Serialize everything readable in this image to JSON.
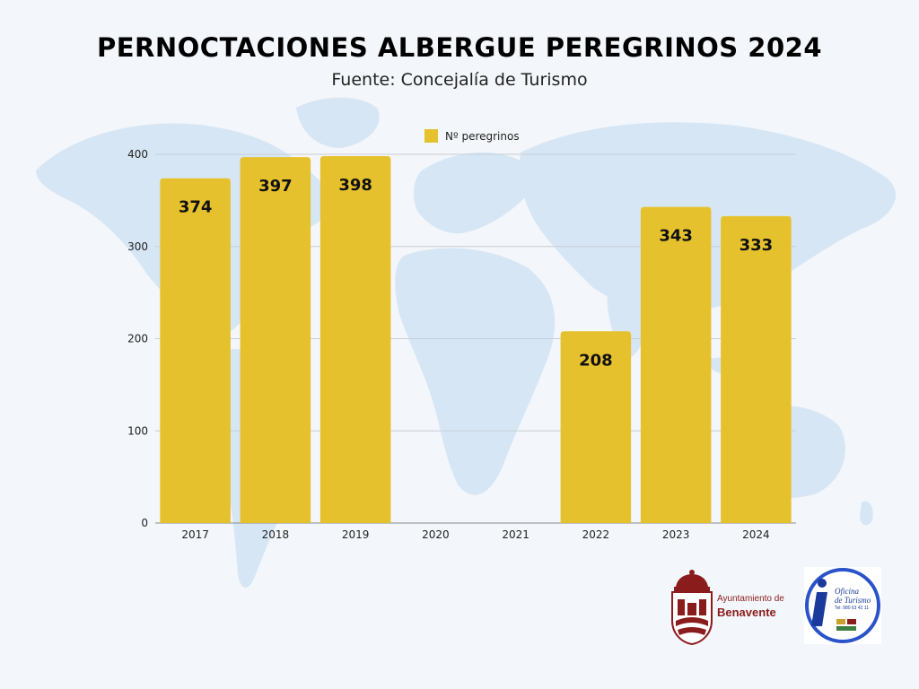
{
  "header": {
    "title": "PERNOCTACIONES ALBERGUE PEREGRINOS 2024",
    "subtitle": "Fuente: Concejalía de Turismo"
  },
  "chart_data": {
    "type": "bar",
    "categories": [
      "2017",
      "2018",
      "2019",
      "2020",
      "2021",
      "2022",
      "2023",
      "2024"
    ],
    "series": [
      {
        "name": "Nº peregrinos",
        "values": [
          374,
          397,
          398,
          null,
          null,
          208,
          343,
          333
        ]
      }
    ],
    "ylim": [
      0,
      400
    ],
    "yticks": [
      0,
      100,
      200,
      300,
      400
    ],
    "grid": true,
    "legend_position": "top-center",
    "bar_color": "#e6c12e",
    "data_labels": [
      "374",
      "397",
      "398",
      "",
      "",
      "208",
      "343",
      "333"
    ]
  },
  "logos": {
    "benavente": {
      "line1": "Ayuntamiento de",
      "line2": "Benavente",
      "color": "#8a1c1c"
    },
    "turismo": {
      "line1": "Oficina",
      "line2": "de Turismo",
      "tel": "Tel: 980 63 42 11",
      "color": "#1a3a9c"
    }
  }
}
